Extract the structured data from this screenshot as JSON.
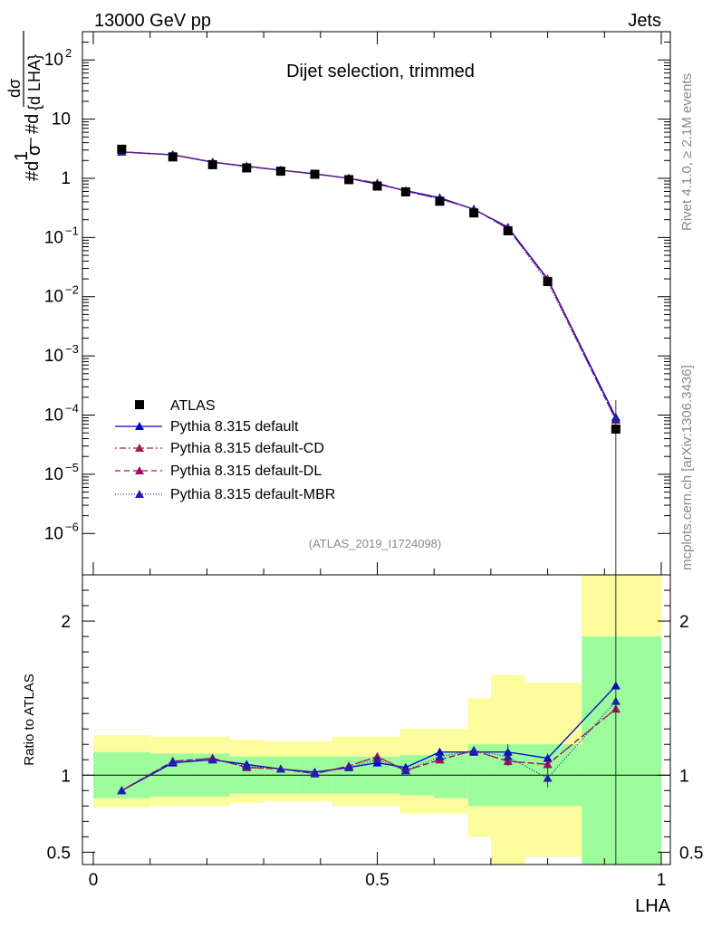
{
  "header": {
    "left": "13000 GeV pp",
    "right": "Jets"
  },
  "side_labels": {
    "top": "Rivet 4.1.0, ≥ 2.1M events",
    "bottom": "mcplots.cern.ch [arXiv:1306.3436]"
  },
  "chart_data": {
    "type": "line",
    "title": "Dijet selection, trimmed",
    "analysis": "(ATLAS_2019_I1724098)",
    "xlabel": "LHA",
    "ylabel": "1/σ dσ/d LHA",
    "ylabel_glyphs": {
      "one": "1",
      "sigma": "σ",
      "d": "#d",
      "dsigma": "dσ",
      "dlha": "{d LHA}"
    },
    "ratio_ylabel": "Ratio to ATLAS",
    "xlim": [
      0,
      1
    ],
    "ylim": [
      2e-07,
      300
    ],
    "ylog": true,
    "ratio_ylim": [
      0.42,
      2.3
    ],
    "x_ticks": [
      0,
      0.5,
      1
    ],
    "x_tick_labels": [
      "0",
      "0.5",
      "1"
    ],
    "y_ticks": [
      {
        "base": "10",
        "exp": "2",
        "value": 100
      },
      {
        "base": "10",
        "exp": "",
        "value": 10
      },
      {
        "base": "1",
        "exp": "",
        "value": 1
      },
      {
        "base": "10",
        "exp": "−1",
        "value": 0.1
      },
      {
        "base": "10",
        "exp": "−2",
        "value": 0.01
      },
      {
        "base": "10",
        "exp": "−3",
        "value": 0.001
      },
      {
        "base": "10",
        "exp": "−4",
        "value": 0.0001
      },
      {
        "base": "10",
        "exp": "−5",
        "value": 1e-05
      },
      {
        "base": "10",
        "exp": "−6",
        "value": 1e-06
      }
    ],
    "ratio_ticks": [
      {
        "label": "2",
        "value": 2
      },
      {
        "label": "1",
        "value": 1
      },
      {
        "label": "0.5",
        "value": 0.5
      }
    ],
    "bins": [
      [
        0.0,
        0.1
      ],
      [
        0.1,
        0.18
      ],
      [
        0.18,
        0.24
      ],
      [
        0.24,
        0.3
      ],
      [
        0.3,
        0.36
      ],
      [
        0.36,
        0.42
      ],
      [
        0.42,
        0.48
      ],
      [
        0.48,
        0.54
      ],
      [
        0.54,
        0.6
      ],
      [
        0.6,
        0.66
      ],
      [
        0.66,
        0.7
      ],
      [
        0.7,
        0.76
      ],
      [
        0.76,
        0.86
      ],
      [
        0.86,
        1.0
      ]
    ],
    "x": [
      0.05,
      0.14,
      0.21,
      0.27,
      0.33,
      0.39,
      0.45,
      0.5,
      0.55,
      0.61,
      0.67,
      0.73,
      0.8,
      0.92
    ],
    "data": {
      "name": "ATLAS",
      "values": [
        3.1,
        2.3,
        1.7,
        1.5,
        1.32,
        1.17,
        0.95,
        0.74,
        0.59,
        0.41,
        0.26,
        0.13,
        0.018,
        5.8e-05
      ]
    },
    "band_stat": [
      [
        0.85,
        1.15
      ],
      [
        0.86,
        1.14
      ],
      [
        0.86,
        1.14
      ],
      [
        0.88,
        1.12
      ],
      [
        0.88,
        1.12
      ],
      [
        0.88,
        1.12
      ],
      [
        0.88,
        1.12
      ],
      [
        0.88,
        1.12
      ],
      [
        0.87,
        1.13
      ],
      [
        0.85,
        1.15
      ],
      [
        0.8,
        1.2
      ],
      [
        0.8,
        1.2
      ],
      [
        0.8,
        1.2
      ],
      [
        0.42,
        1.9
      ]
    ],
    "band_sys": [
      [
        0.79,
        1.26
      ],
      [
        0.8,
        1.25
      ],
      [
        0.8,
        1.25
      ],
      [
        0.82,
        1.23
      ],
      [
        0.83,
        1.22
      ],
      [
        0.83,
        1.22
      ],
      [
        0.8,
        1.25
      ],
      [
        0.8,
        1.25
      ],
      [
        0.75,
        1.3
      ],
      [
        0.75,
        1.3
      ],
      [
        0.6,
        1.5
      ],
      [
        0.4,
        1.65
      ],
      [
        0.47,
        1.6
      ],
      [
        0.42,
        2.3
      ]
    ],
    "series": [
      {
        "name": "Pythia 8.315 default",
        "color": "#0000cc",
        "dash": "",
        "ratio": [
          0.9,
          1.08,
          1.1,
          1.07,
          1.04,
          1.02,
          1.05,
          1.08,
          1.05,
          1.15,
          1.15,
          1.15,
          1.11,
          1.58
        ]
      },
      {
        "name": "Pythia 8.315 default-CD",
        "color": "#a11f4f",
        "dash": "2,3,7,3",
        "ratio": [
          0.9,
          1.09,
          1.11,
          1.05,
          1.04,
          1.01,
          1.06,
          1.12,
          1.03,
          1.1,
          1.16,
          1.09,
          1.07,
          1.43
        ]
      },
      {
        "name": "Pythia 8.315 default-DL",
        "color": "#a0105a",
        "dash": "6,4",
        "ratio": [
          0.9,
          1.09,
          1.11,
          1.05,
          1.04,
          1.01,
          1.06,
          1.12,
          1.03,
          1.1,
          1.16,
          1.09,
          1.07,
          1.43
        ]
      },
      {
        "name": "Pythia 8.315 default-MBR",
        "color": "#2020b0",
        "dash": "1,2",
        "ratio": [
          0.9,
          1.09,
          1.1,
          1.06,
          1.04,
          1.01,
          1.05,
          1.1,
          1.03,
          1.12,
          1.16,
          1.12,
          0.98,
          1.48
        ]
      }
    ],
    "colors": {
      "stat_band": "#9cfc9c",
      "sys_band": "#fcfc9c",
      "data_marker": "#000000"
    }
  }
}
